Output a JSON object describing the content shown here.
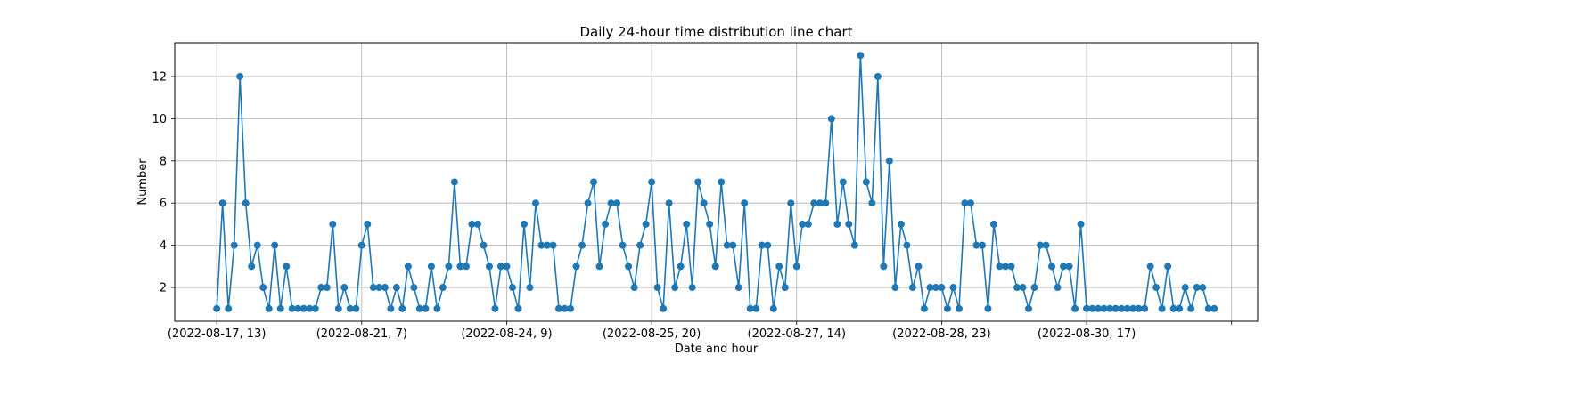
{
  "chart_data": {
    "type": "line",
    "title": "Daily 24-hour time distribution line chart",
    "xlabel": "Date and hour",
    "ylabel": "Number",
    "grid": true,
    "legend": "none",
    "line_color": "#1f77b4",
    "x_ticks": [
      {
        "index": 0,
        "label": "(2022-08-17, 13)"
      },
      {
        "index": 25,
        "label": "(2022-08-21, 7)"
      },
      {
        "index": 50,
        "label": "(2022-08-24, 9)"
      },
      {
        "index": 75,
        "label": "(2022-08-25, 20)"
      },
      {
        "index": 100,
        "label": "(2022-08-27, 14)"
      },
      {
        "index": 125,
        "label": "(2022-08-28, 23)"
      },
      {
        "index": 150,
        "label": "(2022-08-30, 17)"
      },
      {
        "index": 175,
        "label": ""
      }
    ],
    "xlim": [
      -7.25,
      179.5
    ],
    "ylim": [
      0.4,
      13.6
    ],
    "y_ticks": [
      2,
      4,
      6,
      8,
      10,
      12
    ],
    "values": [
      1,
      6,
      1,
      4,
      12,
      6,
      3,
      4,
      2,
      1,
      4,
      1,
      3,
      1,
      1,
      1,
      1,
      1,
      2,
      2,
      5,
      1,
      2,
      1,
      1,
      4,
      5,
      2,
      2,
      2,
      1,
      2,
      1,
      3,
      2,
      1,
      1,
      3,
      1,
      2,
      3,
      7,
      3,
      3,
      5,
      5,
      4,
      3,
      1,
      3,
      3,
      2,
      1,
      5,
      2,
      6,
      4,
      4,
      4,
      1,
      1,
      1,
      3,
      4,
      6,
      7,
      3,
      5,
      6,
      6,
      4,
      3,
      2,
      4,
      5,
      7,
      2,
      1,
      6,
      2,
      3,
      5,
      2,
      7,
      6,
      5,
      3,
      7,
      4,
      4,
      2,
      6,
      1,
      1,
      4,
      4,
      1,
      3,
      2,
      6,
      3,
      5,
      5,
      6,
      6,
      6,
      10,
      5,
      7,
      5,
      4,
      13,
      7,
      6,
      12,
      3,
      8,
      2,
      5,
      4,
      2,
      3,
      1,
      2,
      2,
      2,
      1,
      2,
      1,
      6,
      6,
      4,
      4,
      1,
      5,
      3,
      3,
      3,
      2,
      2,
      1,
      2,
      4,
      4,
      3,
      2,
      3,
      3,
      1,
      5,
      1,
      1,
      1,
      1,
      1,
      1,
      1,
      1,
      1,
      1,
      1,
      3,
      2,
      1,
      3,
      1,
      1,
      2,
      1,
      2,
      2,
      1,
      1
    ]
  }
}
